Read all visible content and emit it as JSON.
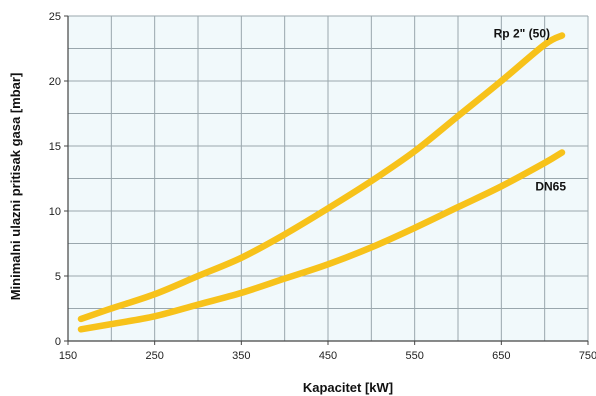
{
  "chart_data": {
    "type": "line",
    "xlabel": "Kapacitet [kW]",
    "ylabel": "Minimalni ulazni pritisak gasa [mbar]",
    "xlim": [
      150,
      750
    ],
    "ylim": [
      0,
      25
    ],
    "x_ticks": [
      150,
      250,
      350,
      450,
      550,
      650,
      750
    ],
    "x_gridlines": [
      150,
      200,
      250,
      300,
      350,
      400,
      450,
      500,
      550,
      600,
      650,
      700,
      750
    ],
    "y_ticks": [
      0,
      5,
      10,
      15,
      20,
      25
    ],
    "y_gridlines": [
      0,
      2.5,
      5,
      7.5,
      10,
      12.5,
      15,
      17.5,
      20,
      22.5,
      25
    ],
    "grid": true,
    "plot_background": "#f1f9fb",
    "grid_color": "#9aa7ad",
    "series": [
      {
        "name": "Rp 2\" (50)",
        "color": "#f7c21a",
        "x": [
          165,
          200,
          250,
          300,
          350,
          400,
          450,
          500,
          550,
          600,
          650,
          700,
          720
        ],
        "y": [
          1.7,
          2.5,
          3.6,
          5.0,
          6.4,
          8.2,
          10.2,
          12.3,
          14.6,
          17.3,
          20.0,
          22.8,
          23.5
        ]
      },
      {
        "name": "DN65",
        "color": "#f7c21a",
        "x": [
          165,
          200,
          250,
          300,
          350,
          400,
          450,
          500,
          550,
          600,
          650,
          700,
          720
        ],
        "y": [
          0.9,
          1.3,
          1.9,
          2.8,
          3.7,
          4.8,
          5.9,
          7.2,
          8.7,
          10.3,
          11.9,
          13.7,
          14.5
        ]
      }
    ]
  }
}
